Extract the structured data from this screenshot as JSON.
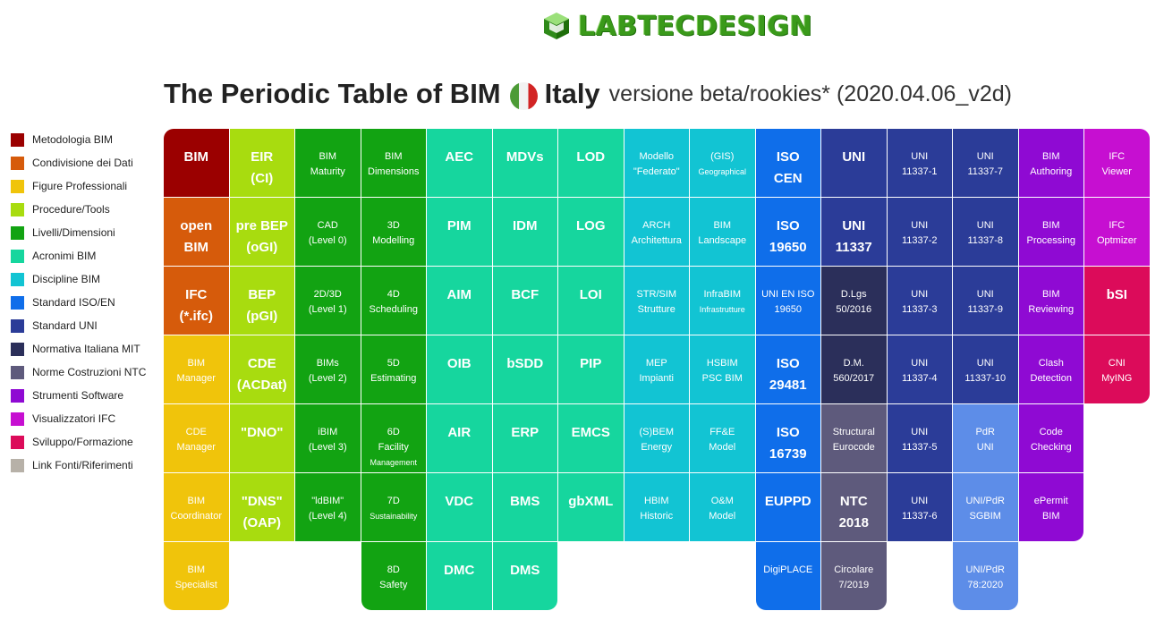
{
  "logo": {
    "text": "LABTECDESIGN"
  },
  "title": {
    "main": "The Periodic Table of BIM",
    "country": "Italy",
    "version": "versione beta/rookies* (2020.04.06_v2d)"
  },
  "colors": {
    "metodologia": "#9b0000",
    "condivisione": "#d65b0b",
    "figure": "#f0c40b",
    "procedure": "#a8dc0f",
    "livelli": "#12a312",
    "acronimi": "#16d69e",
    "discipline": "#12c4d3",
    "iso": "#0f6eea",
    "uni": "#2b3c98",
    "mit": "#2b2f5a",
    "ntc": "#5e5a7c",
    "software": "#8f0ad3",
    "ifc_viewer": "#c60fd1",
    "sviluppo": "#dc0b5a",
    "link": "#b7b1a8",
    "uni_light": "#5d8de8"
  },
  "legend": [
    {
      "label": "Metodologia BIM",
      "color": "#9b0000"
    },
    {
      "label": "Condivisione dei Dati",
      "color": "#d65b0b"
    },
    {
      "label": "Figure Professionali",
      "color": "#f0c40b"
    },
    {
      "label": "Procedure/Tools",
      "color": "#a8dc0f"
    },
    {
      "label": "Livelli/Dimensioni",
      "color": "#12a312"
    },
    {
      "label": "Acronimi BIM",
      "color": "#16d69e"
    },
    {
      "label": "Discipline BIM",
      "color": "#12c4d3"
    },
    {
      "label": "Standard ISO/EN",
      "color": "#0f6eea"
    },
    {
      "label": "Standard UNI",
      "color": "#2b3c98"
    },
    {
      "label": "Normativa Italiana MIT",
      "color": "#2b2f5a"
    },
    {
      "label": "Norme Costruzioni NTC",
      "color": "#5e5a7c"
    },
    {
      "label": "Strumenti Software",
      "color": "#8f0ad3"
    },
    {
      "label": "Visualizzatori IFC",
      "color": "#c60fd1"
    },
    {
      "label": "Sviluppo/Formazione",
      "color": "#dc0b5a"
    },
    {
      "label": "Link Fonti/Riferimenti",
      "color": "#b7b1a8"
    }
  ],
  "cells": [
    {
      "col": 0,
      "row": 0,
      "l1": "BIM",
      "l2": "",
      "big": true,
      "color": "#9b0000"
    },
    {
      "col": 1,
      "row": 0,
      "l1": "EIR",
      "l2": "(CI)",
      "big": true,
      "color": "#a8dc0f"
    },
    {
      "col": 2,
      "row": 0,
      "l1": "BIM",
      "l2": "Maturity",
      "big": false,
      "color": "#12a312"
    },
    {
      "col": 3,
      "row": 0,
      "l1": "BIM",
      "l2": "Dimensions",
      "big": false,
      "color": "#12a312"
    },
    {
      "col": 4,
      "row": 0,
      "l1": "AEC",
      "l2": "",
      "big": true,
      "color": "#16d69e"
    },
    {
      "col": 5,
      "row": 0,
      "l1": "MDVs",
      "l2": "",
      "big": true,
      "color": "#16d69e"
    },
    {
      "col": 6,
      "row": 0,
      "l1": "LOD",
      "l2": "",
      "big": true,
      "color": "#16d69e"
    },
    {
      "col": 7,
      "row": 0,
      "l1": "Modello",
      "l2": "\"Federato\"",
      "big": false,
      "color": "#12c4d3"
    },
    {
      "col": 8,
      "row": 0,
      "l1": "(GIS)",
      "l2": "Geographical",
      "big": false,
      "tiny2": true,
      "color": "#12c4d3"
    },
    {
      "col": 9,
      "row": 0,
      "l1": "ISO",
      "l2": "CEN",
      "big": true,
      "color": "#0f6eea"
    },
    {
      "col": 10,
      "row": 0,
      "l1": "UNI",
      "l2": "",
      "big": true,
      "color": "#2b3c98"
    },
    {
      "col": 11,
      "row": 0,
      "l1": "UNI",
      "l2": "11337-1",
      "big": false,
      "color": "#2b3c98"
    },
    {
      "col": 12,
      "row": 0,
      "l1": "UNI",
      "l2": "11337-7",
      "big": false,
      "color": "#2b3c98"
    },
    {
      "col": 13,
      "row": 0,
      "l1": "BIM",
      "l2": "Authoring",
      "big": false,
      "color": "#8f0ad3"
    },
    {
      "col": 14,
      "row": 0,
      "l1": "IFC",
      "l2": "Viewer",
      "big": false,
      "color": "#c60fd1"
    },
    {
      "col": 0,
      "row": 1,
      "l1": "open",
      "l2": "BIM",
      "big": true,
      "color": "#d65b0b"
    },
    {
      "col": 1,
      "row": 1,
      "l1": "pre BEP",
      "l2": "(oGI)",
      "big": true,
      "color": "#a8dc0f"
    },
    {
      "col": 2,
      "row": 1,
      "l1": "CAD",
      "l2": "(Level 0)",
      "big": false,
      "color": "#12a312"
    },
    {
      "col": 3,
      "row": 1,
      "l1": "3D",
      "l2": "Modelling",
      "big": false,
      "color": "#12a312"
    },
    {
      "col": 4,
      "row": 1,
      "l1": "PIM",
      "l2": "",
      "big": true,
      "color": "#16d69e"
    },
    {
      "col": 5,
      "row": 1,
      "l1": "IDM",
      "l2": "",
      "big": true,
      "color": "#16d69e"
    },
    {
      "col": 6,
      "row": 1,
      "l1": "LOG",
      "l2": "",
      "big": true,
      "color": "#16d69e"
    },
    {
      "col": 7,
      "row": 1,
      "l1": "ARCH",
      "l2": "Architettura",
      "big": false,
      "color": "#12c4d3"
    },
    {
      "col": 8,
      "row": 1,
      "l1": "BIM",
      "l2": "Landscape",
      "big": false,
      "color": "#12c4d3"
    },
    {
      "col": 9,
      "row": 1,
      "l1": "ISO",
      "l2": "19650",
      "big": true,
      "color": "#0f6eea"
    },
    {
      "col": 10,
      "row": 1,
      "l1": "UNI",
      "l2": "11337",
      "big": true,
      "color": "#2b3c98"
    },
    {
      "col": 11,
      "row": 1,
      "l1": "UNI",
      "l2": "11337-2",
      "big": false,
      "color": "#2b3c98"
    },
    {
      "col": 12,
      "row": 1,
      "l1": "UNI",
      "l2": "11337-8",
      "big": false,
      "color": "#2b3c98"
    },
    {
      "col": 13,
      "row": 1,
      "l1": "BIM",
      "l2": "Processing",
      "big": false,
      "color": "#8f0ad3"
    },
    {
      "col": 14,
      "row": 1,
      "l1": "IFC",
      "l2": "Optmizer",
      "big": false,
      "color": "#c60fd1"
    },
    {
      "col": 0,
      "row": 2,
      "l1": "IFC",
      "l2": "(*.ifc)",
      "big": true,
      "color": "#d65b0b"
    },
    {
      "col": 1,
      "row": 2,
      "l1": "BEP",
      "l2": "(pGI)",
      "big": true,
      "color": "#a8dc0f"
    },
    {
      "col": 2,
      "row": 2,
      "l1": "2D/3D",
      "l2": "(Level 1)",
      "big": false,
      "color": "#12a312"
    },
    {
      "col": 3,
      "row": 2,
      "l1": "4D",
      "l2": "Scheduling",
      "big": false,
      "color": "#12a312"
    },
    {
      "col": 4,
      "row": 2,
      "l1": "AIM",
      "l2": "",
      "big": true,
      "color": "#16d69e"
    },
    {
      "col": 5,
      "row": 2,
      "l1": "BCF",
      "l2": "",
      "big": true,
      "color": "#16d69e"
    },
    {
      "col": 6,
      "row": 2,
      "l1": "LOI",
      "l2": "",
      "big": true,
      "color": "#16d69e"
    },
    {
      "col": 7,
      "row": 2,
      "l1": "STR/SIM",
      "l2": "Strutture",
      "big": false,
      "color": "#12c4d3"
    },
    {
      "col": 8,
      "row": 2,
      "l1": "InfraBIM",
      "l2": "Infrastrutture",
      "big": false,
      "tiny2": true,
      "color": "#12c4d3"
    },
    {
      "col": 9,
      "row": 2,
      "l1": "UNI EN ISO",
      "l2": "19650",
      "big": false,
      "color": "#0f6eea"
    },
    {
      "col": 10,
      "row": 2,
      "l1": "D.Lgs",
      "l2": "50/2016",
      "big": false,
      "color": "#2b2f5a"
    },
    {
      "col": 11,
      "row": 2,
      "l1": "UNI",
      "l2": "11337-3",
      "big": false,
      "color": "#2b3c98"
    },
    {
      "col": 12,
      "row": 2,
      "l1": "UNI",
      "l2": "11337-9",
      "big": false,
      "color": "#2b3c98"
    },
    {
      "col": 13,
      "row": 2,
      "l1": "BIM",
      "l2": "Reviewing",
      "big": false,
      "color": "#8f0ad3"
    },
    {
      "col": 14,
      "row": 2,
      "l1": "bSI",
      "l2": "",
      "big": true,
      "color": "#dc0b5a"
    },
    {
      "col": 0,
      "row": 3,
      "l1": "BIM",
      "l2": "Manager",
      "big": false,
      "color": "#f0c40b"
    },
    {
      "col": 1,
      "row": 3,
      "l1": "CDE",
      "l2": "(ACDat)",
      "big": true,
      "color": "#a8dc0f"
    },
    {
      "col": 2,
      "row": 3,
      "l1": "BIMs",
      "l2": "(Level 2)",
      "big": false,
      "color": "#12a312"
    },
    {
      "col": 3,
      "row": 3,
      "l1": "5D",
      "l2": "Estimating",
      "big": false,
      "color": "#12a312"
    },
    {
      "col": 4,
      "row": 3,
      "l1": "OIB",
      "l2": "",
      "big": true,
      "color": "#16d69e"
    },
    {
      "col": 5,
      "row": 3,
      "l1": "bSDD",
      "l2": "",
      "big": true,
      "color": "#16d69e"
    },
    {
      "col": 6,
      "row": 3,
      "l1": "PIP",
      "l2": "",
      "big": true,
      "color": "#16d69e"
    },
    {
      "col": 7,
      "row": 3,
      "l1": "MEP",
      "l2": "Impianti",
      "big": false,
      "color": "#12c4d3"
    },
    {
      "col": 8,
      "row": 3,
      "l1": "HSBIM",
      "l2": "PSC BIM",
      "big": false,
      "color": "#12c4d3"
    },
    {
      "col": 9,
      "row": 3,
      "l1": "ISO",
      "l2": "29481",
      "big": true,
      "color": "#0f6eea"
    },
    {
      "col": 10,
      "row": 3,
      "l1": "D.M.",
      "l2": "560/2017",
      "big": false,
      "color": "#2b2f5a"
    },
    {
      "col": 11,
      "row": 3,
      "l1": "UNI",
      "l2": "11337-4",
      "big": false,
      "color": "#2b3c98"
    },
    {
      "col": 12,
      "row": 3,
      "l1": "UNI",
      "l2": "11337-10",
      "big": false,
      "color": "#2b3c98"
    },
    {
      "col": 13,
      "row": 3,
      "l1": "Clash",
      "l2": "Detection",
      "big": false,
      "color": "#8f0ad3"
    },
    {
      "col": 14,
      "row": 3,
      "l1": "CNI",
      "l2": "MyING",
      "big": false,
      "color": "#dc0b5a"
    },
    {
      "col": 0,
      "row": 4,
      "l1": "CDE",
      "l2": "Manager",
      "big": false,
      "color": "#f0c40b"
    },
    {
      "col": 1,
      "row": 4,
      "l1": "\"DNO\"",
      "l2": "",
      "big": true,
      "color": "#a8dc0f"
    },
    {
      "col": 2,
      "row": 4,
      "l1": "iBIM",
      "l2": "(Level 3)",
      "big": false,
      "color": "#12a312"
    },
    {
      "col": 3,
      "row": 4,
      "l1": "6D",
      "l2": "Facility",
      "l3": "Management",
      "big": false,
      "color": "#12a312"
    },
    {
      "col": 4,
      "row": 4,
      "l1": "AIR",
      "l2": "",
      "big": true,
      "color": "#16d69e"
    },
    {
      "col": 5,
      "row": 4,
      "l1": "ERP",
      "l2": "",
      "big": true,
      "color": "#16d69e"
    },
    {
      "col": 6,
      "row": 4,
      "l1": "EMCS",
      "l2": "",
      "big": true,
      "color": "#16d69e"
    },
    {
      "col": 7,
      "row": 4,
      "l1": "(S)BEM",
      "l2": "Energy",
      "big": false,
      "color": "#12c4d3"
    },
    {
      "col": 8,
      "row": 4,
      "l1": "FF&E",
      "l2": "Model",
      "big": false,
      "color": "#12c4d3"
    },
    {
      "col": 9,
      "row": 4,
      "l1": "ISO",
      "l2": "16739",
      "big": true,
      "color": "#0f6eea"
    },
    {
      "col": 10,
      "row": 4,
      "l1": "Structural",
      "l2": "Eurocode",
      "big": false,
      "color": "#5e5a7c"
    },
    {
      "col": 11,
      "row": 4,
      "l1": "UNI",
      "l2": "11337-5",
      "big": false,
      "color": "#2b3c98"
    },
    {
      "col": 12,
      "row": 4,
      "l1": "PdR",
      "l2": "UNI",
      "big": false,
      "color": "#5d8de8"
    },
    {
      "col": 13,
      "row": 4,
      "l1": "Code",
      "l2": "Checking",
      "big": false,
      "color": "#8f0ad3"
    },
    {
      "col": 0,
      "row": 5,
      "l1": "BIM",
      "l2": "Coordinator",
      "big": false,
      "color": "#f0c40b"
    },
    {
      "col": 1,
      "row": 5,
      "l1": "\"DNS\"",
      "l2": "(OAP)",
      "big": true,
      "color": "#a8dc0f"
    },
    {
      "col": 2,
      "row": 5,
      "l1": "\"ldBIM\"",
      "l2": "(Level 4)",
      "big": false,
      "color": "#12a312"
    },
    {
      "col": 3,
      "row": 5,
      "l1": "7D",
      "l2": "Sustainability",
      "big": false,
      "tiny2": true,
      "color": "#12a312"
    },
    {
      "col": 4,
      "row": 5,
      "l1": "VDC",
      "l2": "",
      "big": true,
      "color": "#16d69e"
    },
    {
      "col": 5,
      "row": 5,
      "l1": "BMS",
      "l2": "",
      "big": true,
      "color": "#16d69e"
    },
    {
      "col": 6,
      "row": 5,
      "l1": "gbXML",
      "l2": "",
      "big": true,
      "color": "#16d69e"
    },
    {
      "col": 7,
      "row": 5,
      "l1": "HBIM",
      "l2": "Historic",
      "big": false,
      "color": "#12c4d3"
    },
    {
      "col": 8,
      "row": 5,
      "l1": "O&M",
      "l2": "Model",
      "big": false,
      "color": "#12c4d3"
    },
    {
      "col": 9,
      "row": 5,
      "l1": "EUPPD",
      "l2": "",
      "big": true,
      "color": "#0f6eea"
    },
    {
      "col": 10,
      "row": 5,
      "l1": "NTC",
      "l2": "2018",
      "big": true,
      "color": "#5e5a7c"
    },
    {
      "col": 11,
      "row": 5,
      "l1": "UNI",
      "l2": "11337-6",
      "big": false,
      "color": "#2b3c98"
    },
    {
      "col": 12,
      "row": 5,
      "l1": "UNI/PdR",
      "l2": "SGBIM",
      "big": false,
      "color": "#5d8de8"
    },
    {
      "col": 13,
      "row": 5,
      "l1": "ePermit",
      "l2": "BIM",
      "big": false,
      "color": "#8f0ad3"
    },
    {
      "col": 0,
      "row": 6,
      "l1": "BIM",
      "l2": "Specialist",
      "big": false,
      "color": "#f0c40b"
    },
    {
      "col": 3,
      "row": 6,
      "l1": "8D",
      "l2": "Safety",
      "big": false,
      "color": "#12a312"
    },
    {
      "col": 4,
      "row": 6,
      "l1": "DMC",
      "l2": "",
      "big": true,
      "color": "#16d69e"
    },
    {
      "col": 5,
      "row": 6,
      "l1": "DMS",
      "l2": "",
      "big": true,
      "color": "#16d69e"
    },
    {
      "col": 9,
      "row": 6,
      "l1": "DigiPLACE",
      "l2": "",
      "big": false,
      "color": "#0f6eea"
    },
    {
      "col": 10,
      "row": 6,
      "l1": "Circolare",
      "l2": "7/2019",
      "big": false,
      "color": "#5e5a7c"
    },
    {
      "col": 12,
      "row": 6,
      "l1": "UNI/PdR",
      "l2": "78:2020",
      "big": false,
      "color": "#5d8de8"
    }
  ]
}
